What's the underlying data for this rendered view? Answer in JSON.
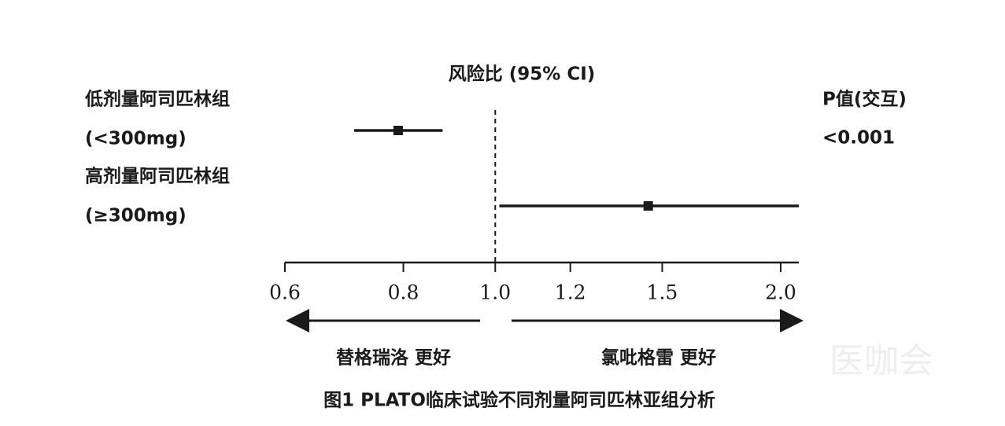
{
  "chart_data": {
    "type": "forest",
    "title": "风险比 (95% CI)",
    "categories": [
      "低剂量阿司匹林组",
      "高剂量阿司匹林组"
    ],
    "subcategories": [
      "(<300mg)",
      "(≥300mg)"
    ],
    "values": [
      0.79,
      1.45
    ],
    "lower": [
      0.71,
      1.01
    ],
    "upper": [
      0.88,
      2.09
    ],
    "p_header": "P值(交互)",
    "p_values": [
      "<0.001",
      null
    ],
    "xscale": "log",
    "xlim": [
      0.6,
      2.09
    ],
    "xticks": [
      0.6,
      0.8,
      {
        "value": 1,
        "label": "1.0"
      },
      1.2,
      1.5,
      {
        "value": 2,
        "label": "2.0"
      }
    ],
    "reference": 1,
    "left_label": "替格瑞洛 更好",
    "right_label": "氯吡格雷 更好",
    "caption": "图1 PLATO临床试验不同剂量阿司匹林亚组分析",
    "watermark": "医咖会",
    "color": "#1a1a1a"
  }
}
